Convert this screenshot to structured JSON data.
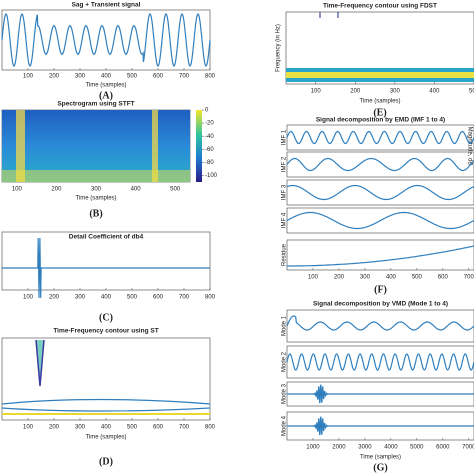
{
  "panels": [
    {
      "label": "(A)",
      "title": "Sag + Transient signal",
      "xlabel": "Time (samples)",
      "xlim": [
        0,
        800
      ],
      "xticks": [
        100,
        200,
        300,
        400,
        500,
        600,
        700,
        800
      ]
    },
    {
      "label": "(B)",
      "title": "Spectrogram using STFT",
      "xlabel": "Time (samples)",
      "xlim": [
        62.5,
        537.5
      ],
      "xticks": [
        100,
        200,
        300,
        400,
        500
      ],
      "colorbar_label": "Magnitude, dB",
      "clim": [
        -110,
        0
      ],
      "cticks": [
        0,
        -20,
        -40,
        -60,
        -80,
        -100
      ]
    },
    {
      "label": "(C)",
      "title": "Detail Coefficient of db4",
      "xlim": [
        0,
        800
      ],
      "xticks": [
        100,
        200,
        300,
        400,
        500,
        600,
        700,
        800
      ]
    },
    {
      "label": "(D)",
      "title": "Time-Frequency contour using ST",
      "xlabel": "Time (samples)",
      "xlim": [
        0,
        800
      ],
      "xticks": [
        100,
        200,
        300,
        400,
        500,
        600,
        700,
        800
      ]
    },
    {
      "label": "(E)",
      "title": "Time-Frequency contour using FDST",
      "xlabel": "Time (samples)",
      "ylabel": "Frequency (in Hz)",
      "xlim": [
        25,
        500
      ],
      "xticks": [
        100,
        200,
        300,
        400,
        500
      ]
    },
    {
      "label": "(F)",
      "title": "Signal decomposition by EMD (IMF 1 to 4)",
      "subplots": [
        "IMF 1",
        "IMF 2",
        "IMF 3",
        "IMF 4",
        "Residue"
      ],
      "xlim": [
        0,
        720
      ],
      "xticks": [
        100,
        200,
        300,
        400,
        500,
        600,
        700
      ]
    },
    {
      "label": "(G)",
      "title": "Signal decomposition by VMD (Mode 1 to 4)",
      "xlabel": "Time (samples)",
      "subplots": [
        "Mode 1",
        "Mode 2",
        "Mode 3",
        "Mode 4"
      ],
      "xlim": [
        0,
        7200
      ],
      "xticks": [
        1000,
        2000,
        3000,
        4000,
        5000,
        6000,
        7000
      ]
    }
  ]
}
